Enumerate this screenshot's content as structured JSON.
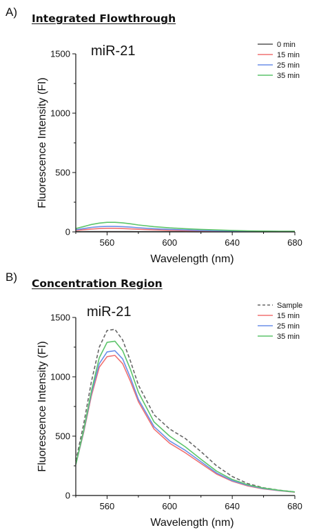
{
  "chart_data": [
    {
      "type": "line",
      "panel_label": "A)",
      "title": "Integrated Flowthrough",
      "annotation": "miR-21",
      "xlabel": "Wavelength (nm)",
      "ylabel": "Fluorescence Intensity (FI)",
      "xlim": [
        540,
        680
      ],
      "ylim": [
        0,
        1500
      ],
      "xticks": [
        560,
        600,
        640,
        680
      ],
      "yticks": [
        0,
        500,
        1000,
        1500
      ],
      "grid": false,
      "legend": "top-right",
      "x": [
        540,
        545,
        550,
        555,
        560,
        565,
        570,
        575,
        580,
        590,
        600,
        610,
        620,
        630,
        640,
        650,
        660,
        670,
        680
      ],
      "series": [
        {
          "name": "0 min",
          "color": "#555555",
          "dash": "solid",
          "values": [
            2,
            2,
            3,
            3,
            3,
            3,
            3,
            3,
            2,
            2,
            2,
            2,
            1,
            1,
            1,
            1,
            1,
            1,
            1
          ]
        },
        {
          "name": "15 min",
          "color": "#f07070",
          "dash": "solid",
          "values": [
            12,
            18,
            24,
            28,
            30,
            30,
            28,
            25,
            22,
            17,
            13,
            10,
            8,
            6,
            5,
            4,
            3,
            3,
            2
          ]
        },
        {
          "name": "25 min",
          "color": "#6a8ee8",
          "dash": "solid",
          "values": [
            18,
            28,
            38,
            44,
            46,
            46,
            44,
            40,
            35,
            27,
            21,
            16,
            12,
            9,
            7,
            6,
            5,
            4,
            3
          ]
        },
        {
          "name": "35 min",
          "color": "#5cc46a",
          "dash": "solid",
          "values": [
            28,
            45,
            62,
            74,
            80,
            80,
            76,
            68,
            58,
            44,
            34,
            27,
            21,
            16,
            12,
            9,
            7,
            6,
            5
          ]
        }
      ]
    },
    {
      "type": "line",
      "panel_label": "B)",
      "title": "Concentration Region",
      "annotation": "miR-21",
      "xlabel": "Wavelength (nm)",
      "ylabel": "Fluorescence Intensity (FI)",
      "xlim": [
        540,
        680
      ],
      "ylim": [
        0,
        1500
      ],
      "xticks": [
        560,
        600,
        640,
        680
      ],
      "yticks": [
        0,
        500,
        1000,
        1500
      ],
      "grid": false,
      "legend": "top-right",
      "x": [
        540,
        545,
        550,
        555,
        560,
        565,
        570,
        575,
        580,
        590,
        600,
        610,
        620,
        630,
        640,
        650,
        660,
        670,
        680
      ],
      "series": [
        {
          "name": "Sample",
          "color": "#666666",
          "dash": "dashed",
          "values": [
            290,
            600,
            960,
            1250,
            1390,
            1400,
            1310,
            1130,
            930,
            680,
            560,
            480,
            370,
            250,
            160,
            100,
            65,
            45,
            30
          ]
        },
        {
          "name": "15 min",
          "color": "#f07070",
          "dash": "solid",
          "values": [
            260,
            530,
            840,
            1080,
            1170,
            1180,
            1110,
            960,
            790,
            560,
            440,
            360,
            270,
            180,
            120,
            80,
            55,
            40,
            28
          ]
        },
        {
          "name": "25 min",
          "color": "#6a8ee8",
          "dash": "solid",
          "values": [
            260,
            540,
            860,
            1110,
            1210,
            1220,
            1150,
            990,
            810,
            580,
            460,
            380,
            285,
            190,
            125,
            85,
            58,
            42,
            29
          ]
        },
        {
          "name": "35 min",
          "color": "#5cc46a",
          "dash": "solid",
          "values": [
            260,
            550,
            880,
            1160,
            1290,
            1300,
            1220,
            1060,
            870,
            620,
            500,
            410,
            305,
            205,
            135,
            90,
            62,
            44,
            30
          ]
        }
      ]
    }
  ]
}
